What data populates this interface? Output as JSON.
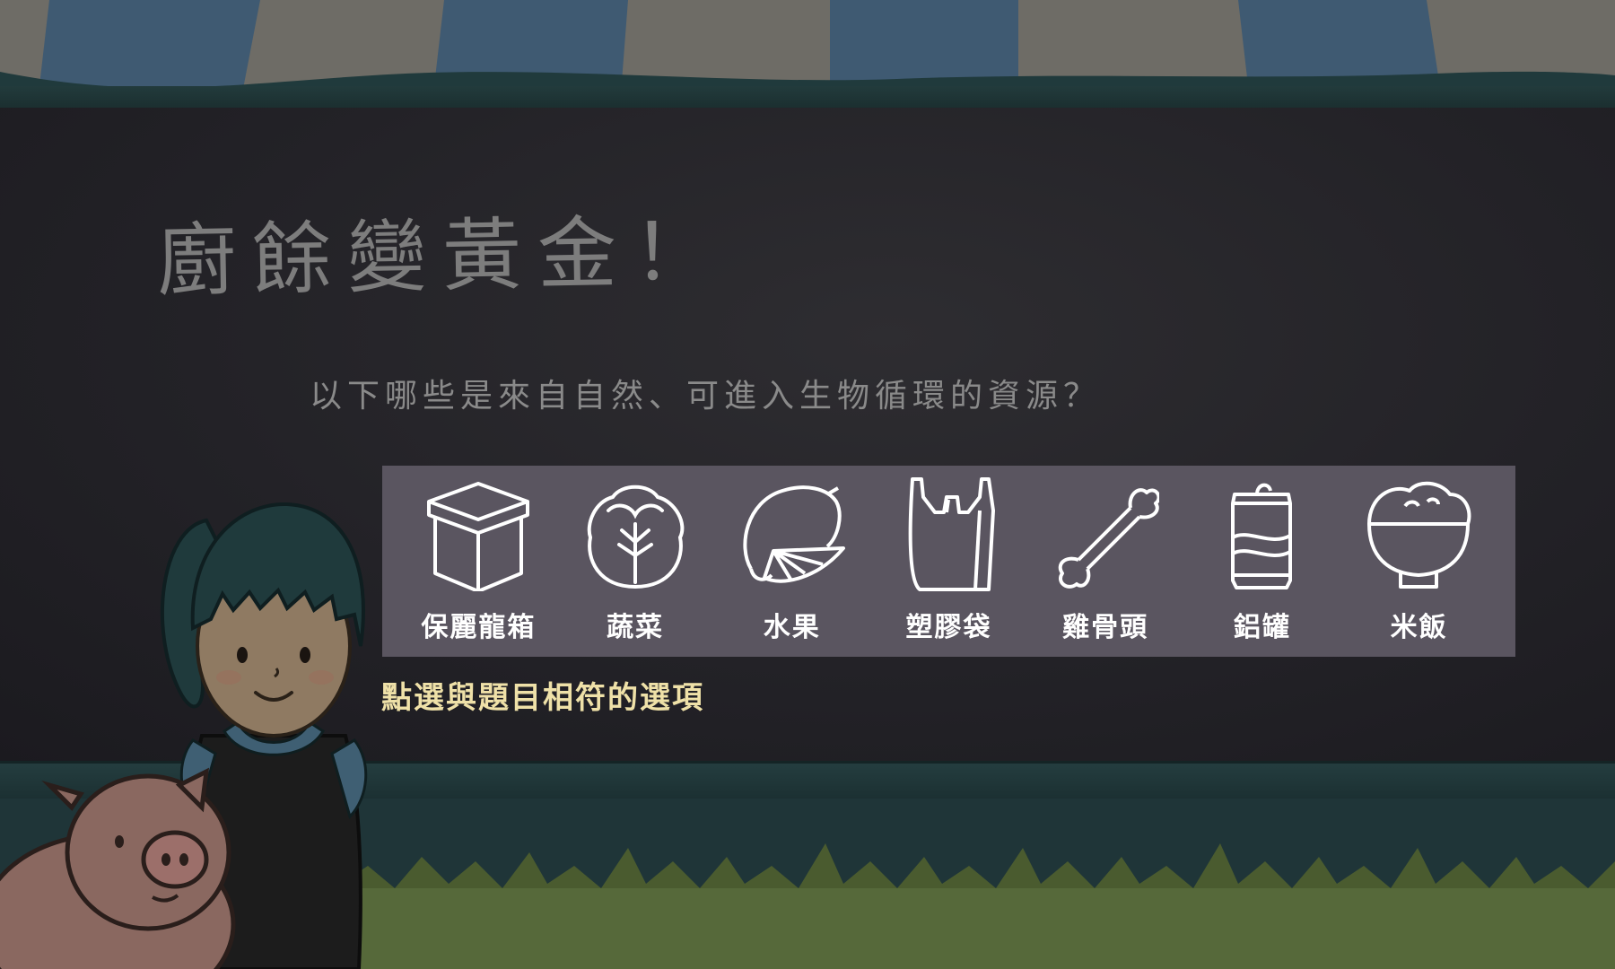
{
  "game": {
    "title": "廚餘變黃金！",
    "question": "以下哪些是來自自然、可進入生物循環的資源？",
    "hint": "點選與題目相符的選項"
  },
  "options": [
    {
      "label": "保麗龍箱",
      "icon": "box-icon"
    },
    {
      "label": "蔬菜",
      "icon": "cabbage-icon"
    },
    {
      "label": "水果",
      "icon": "lemon-icon"
    },
    {
      "label": "塑膠袋",
      "icon": "plastic-bag-icon"
    },
    {
      "label": "雞骨頭",
      "icon": "bone-icon"
    },
    {
      "label": "鋁罐",
      "icon": "can-icon"
    },
    {
      "label": "米飯",
      "icon": "rice-bowl-icon"
    }
  ],
  "colors": {
    "board": "#232227",
    "panel": "#5a5560",
    "hint": "#efe1a8",
    "title": "#7d7d7d",
    "awning_blue": "#3f5a72",
    "awning_grey": "#6e6c66"
  }
}
